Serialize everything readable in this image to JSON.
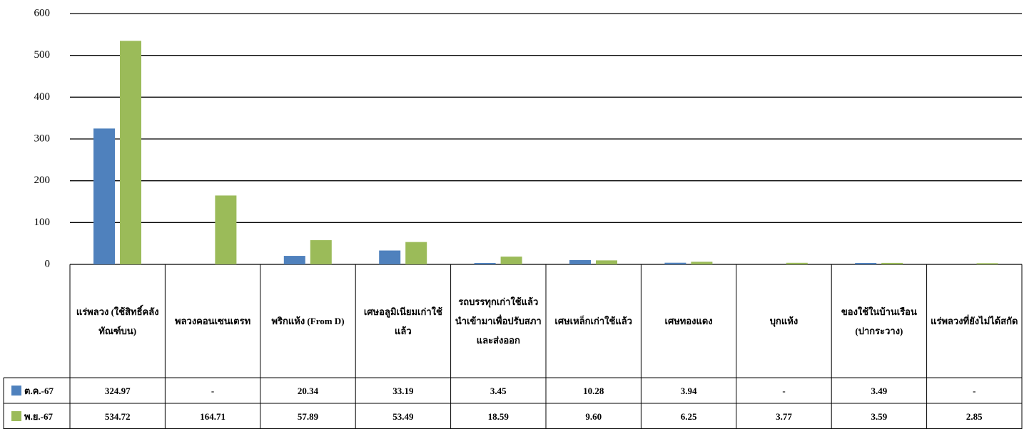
{
  "chart_data": {
    "type": "bar",
    "categories": [
      "แร่พลวง (ใช้สิทธิ์คลังทัณฑ์บน)",
      "พลวงคอนเซนเตรท",
      "พริกแห้ง (From D)",
      "เศษอลูมิเนียมเก่าใช้แล้ว",
      "รถบรรทุกเก่าใช้แล้วนำเข้ามาเพื่อปรับสภาและส่งออก",
      "เศษเหล็กเก่าใช้แล้ว",
      "เศษทองแดง",
      "บุกแห้ง",
      "ของใช้ในบ้านเรือน (ปากระวาง)",
      "แร่พลวงที่ยังไม่ได้สกัด"
    ],
    "series": [
      {
        "name": "ต.ค.-67",
        "color": "#4f81bd",
        "values": [
          324.97,
          null,
          20.34,
          33.19,
          3.45,
          10.28,
          3.94,
          null,
          3.49,
          null
        ],
        "value_labels": [
          "324.97",
          "-",
          "20.34",
          "33.19",
          "3.45",
          "10.28",
          "3.94",
          "-",
          "3.49",
          "-"
        ]
      },
      {
        "name": "พ.ย.-67",
        "color": "#9bbb59",
        "values": [
          534.72,
          164.71,
          57.89,
          53.49,
          18.59,
          9.6,
          6.25,
          3.77,
          3.59,
          2.85
        ],
        "value_labels": [
          "534.72",
          "164.71",
          "57.89",
          "53.49",
          "18.59",
          "9.60",
          "6.25",
          "3.77",
          "3.59",
          "2.85"
        ]
      }
    ],
    "ylim": [
      0,
      600
    ],
    "yticks": [
      0,
      100,
      200,
      300,
      400,
      500,
      600
    ],
    "grid": true
  }
}
